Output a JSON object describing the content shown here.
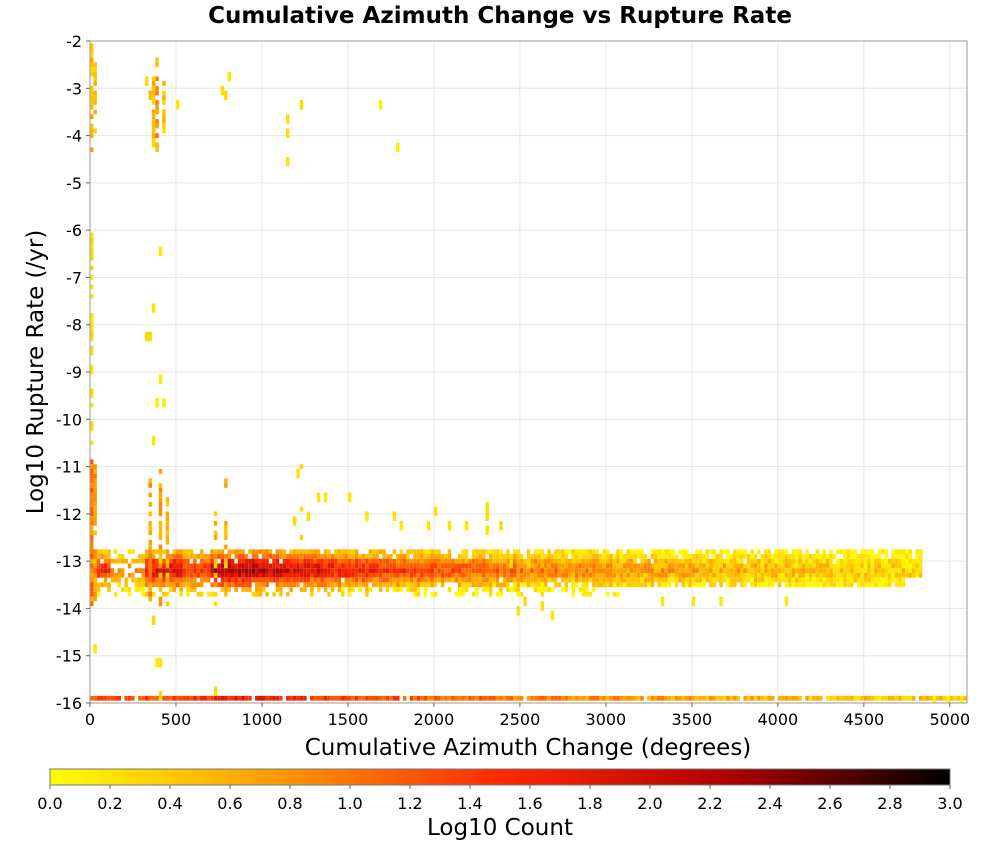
{
  "chart_data": {
    "type": "heatmap",
    "title": "Cumulative Azimuth Change vs Rupture Rate",
    "xlabel": "Cumulative Azimuth Change (degrees)",
    "ylabel": "Log10 Rupture Rate (/yr)",
    "xlim": [
      0,
      5100
    ],
    "ylim": [
      -16,
      -2
    ],
    "x_ticks": [
      0,
      500,
      1000,
      1500,
      2000,
      2500,
      3000,
      3500,
      4000,
      4500,
      5000
    ],
    "y_ticks": [
      -2,
      -3,
      -4,
      -5,
      -6,
      -7,
      -8,
      -9,
      -10,
      -11,
      -12,
      -13,
      -14,
      -15,
      -16
    ],
    "grid": true,
    "colorbar": {
      "label": "Log10 Count",
      "range": [
        0,
        3
      ],
      "ticks": [
        "0.0",
        "0.2",
        "0.4",
        "0.6",
        "0.8",
        "1.0",
        "1.2",
        "1.4",
        "1.6",
        "1.8",
        "2.0",
        "2.2",
        "2.4",
        "2.6",
        "2.8",
        "3.0"
      ],
      "colors": [
        "#ffff00",
        "#ff9a00",
        "#ff2a00",
        "#b00000",
        "#000000"
      ]
    },
    "cell_size": {
      "x": 20,
      "y": 0.1
    },
    "bands": [
      {
        "x_range": [
          0,
          4840
        ],
        "y": -12.8,
        "peak_x": 850,
        "peak": 0.75,
        "decay": 1500,
        "jitter": 0.2,
        "density": 0.75
      },
      {
        "x_range": [
          0,
          4840
        ],
        "y": -12.9,
        "peak_x": 850,
        "peak": 1.1,
        "decay": 1600,
        "jitter": 0.25,
        "density": 0.9
      },
      {
        "x_range": [
          0,
          4840
        ],
        "y": -13.0,
        "peak_x": 850,
        "peak": 1.7,
        "decay": 1800,
        "jitter": 0.3,
        "density": 0.97
      },
      {
        "x_range": [
          0,
          4840
        ],
        "y": -13.1,
        "peak_x": 850,
        "peak": 2.05,
        "decay": 2000,
        "jitter": 0.3,
        "density": 1
      },
      {
        "x_range": [
          0,
          4840
        ],
        "y": -13.2,
        "peak_x": 850,
        "peak": 2.3,
        "decay": 2100,
        "jitter": 0.3,
        "density": 1
      },
      {
        "x_range": [
          0,
          4840
        ],
        "y": -13.3,
        "peak_x": 850,
        "peak": 2.0,
        "decay": 2000,
        "jitter": 0.3,
        "density": 1
      },
      {
        "x_range": [
          0,
          4740
        ],
        "y": -13.4,
        "peak_x": 850,
        "peak": 1.5,
        "decay": 1800,
        "jitter": 0.3,
        "density": 0.95
      },
      {
        "x_range": [
          0,
          4740
        ],
        "y": -13.5,
        "peak_x": 850,
        "peak": 1.1,
        "decay": 1500,
        "jitter": 0.3,
        "density": 0.85
      },
      {
        "x_range": [
          0,
          3000
        ],
        "y": -13.6,
        "peak_x": 850,
        "peak": 0.6,
        "decay": 1200,
        "jitter": 0.25,
        "density": 0.55
      },
      {
        "x_range": [
          0,
          3100
        ],
        "y": -13.7,
        "peak_x": 850,
        "peak": 0.4,
        "decay": 1000,
        "jitter": 0.2,
        "density": 0.35
      },
      {
        "x_range": [
          0,
          5100
        ],
        "y": -15.9,
        "peak_x": 1000,
        "peak": 1.7,
        "decay": 2600,
        "jitter": 0.3,
        "density": 0.96
      }
    ],
    "columns": [
      {
        "x": 10,
        "y_from": -2.0,
        "y_to": -4.3,
        "value": 0.5,
        "density": 0.75
      },
      {
        "x": 10,
        "y_from": -6.0,
        "y_to": -10.8,
        "value": 0.25,
        "density": 0.55
      },
      {
        "x": 10,
        "y_from": -10.9,
        "y_to": -13.9,
        "value": 0.9,
        "density": 0.95
      },
      {
        "x": 30,
        "y_from": -2.5,
        "y_to": -4.2,
        "value": 0.45,
        "density": 0.5
      },
      {
        "x": 30,
        "y_from": -11.0,
        "y_to": -13.8,
        "value": 0.7,
        "density": 0.8
      },
      {
        "x": 350,
        "y_from": -11.3,
        "y_to": -13.9,
        "value": 0.8,
        "density": 0.7
      },
      {
        "x": 370,
        "y_from": -2.5,
        "y_to": -4.3,
        "value": 0.5,
        "density": 0.7
      },
      {
        "x": 390,
        "y_from": -2.4,
        "y_to": -4.2,
        "value": 0.75,
        "density": 0.7
      },
      {
        "x": 410,
        "y_from": -11.0,
        "y_to": -13.9,
        "value": 0.7,
        "density": 0.6
      },
      {
        "x": 430,
        "y_from": -2.8,
        "y_to": -4.0,
        "value": 0.45,
        "density": 0.6
      },
      {
        "x": 450,
        "y_from": -11.6,
        "y_to": -13.9,
        "value": 0.5,
        "density": 0.55
      },
      {
        "x": 730,
        "y_from": -11.9,
        "y_to": -13.9,
        "value": 0.45,
        "density": 0.55
      },
      {
        "x": 790,
        "y_from": -11.2,
        "y_to": -13.8,
        "value": 0.55,
        "density": 0.5
      },
      {
        "x": 1230,
        "y_from": -11.0,
        "y_to": -12.5,
        "value": 0.3,
        "density": 0.45
      },
      {
        "x": 2310,
        "y_from": -11.8,
        "y_to": -12.4,
        "value": 0.3,
        "density": 0.7
      }
    ],
    "points": [
      {
        "x": 330,
        "y": -2.8,
        "value": 0.3
      },
      {
        "x": 350,
        "y": -3.1,
        "value": 0.5
      },
      {
        "x": 510,
        "y": -3.3,
        "value": 0.2
      },
      {
        "x": 770,
        "y": -3.0,
        "value": 0.3
      },
      {
        "x": 790,
        "y": -3.1,
        "value": 0.3
      },
      {
        "x": 810,
        "y": -2.7,
        "value": 0.2
      },
      {
        "x": 1150,
        "y": -3.6,
        "value": 0.25
      },
      {
        "x": 1150,
        "y": -3.9,
        "value": 0.25
      },
      {
        "x": 1150,
        "y": -4.5,
        "value": 0.2
      },
      {
        "x": 1230,
        "y": -3.3,
        "value": 0.3
      },
      {
        "x": 1690,
        "y": -3.3,
        "value": 0.15
      },
      {
        "x": 1790,
        "y": -4.2,
        "value": 0.15
      },
      {
        "x": 370,
        "y": -4.1,
        "value": 0.3
      },
      {
        "x": 390,
        "y": -4.2,
        "value": 0.5
      },
      {
        "x": 410,
        "y": -6.4,
        "value": 0.2
      },
      {
        "x": 370,
        "y": -7.6,
        "value": 0.2
      },
      {
        "x": 330,
        "y": -8.2,
        "value": 0.3
      },
      {
        "x": 350,
        "y": -8.2,
        "value": 0.3
      },
      {
        "x": 410,
        "y": -9.1,
        "value": 0.15
      },
      {
        "x": 390,
        "y": -9.6,
        "value": 0.15
      },
      {
        "x": 430,
        "y": -9.6,
        "value": 0.15
      },
      {
        "x": 370,
        "y": -10.4,
        "value": 0.2
      },
      {
        "x": 30,
        "y": -14.8,
        "value": 0.2
      },
      {
        "x": 370,
        "y": -14.2,
        "value": 0.3
      },
      {
        "x": 390,
        "y": -15.1,
        "value": 0.2
      },
      {
        "x": 410,
        "y": -15.1,
        "value": 0.2
      },
      {
        "x": 410,
        "y": -15.8,
        "value": 0.3
      },
      {
        "x": 730,
        "y": -15.7,
        "value": 0.3
      },
      {
        "x": 1210,
        "y": -11.1,
        "value": 0.25
      },
      {
        "x": 1330,
        "y": -11.6,
        "value": 0.2
      },
      {
        "x": 1370,
        "y": -11.6,
        "value": 0.2
      },
      {
        "x": 1510,
        "y": -11.6,
        "value": 0.2
      },
      {
        "x": 1610,
        "y": -12.0,
        "value": 0.2
      },
      {
        "x": 1770,
        "y": -12.0,
        "value": 0.25
      },
      {
        "x": 1810,
        "y": -12.2,
        "value": 0.2
      },
      {
        "x": 2010,
        "y": -11.9,
        "value": 0.25
      },
      {
        "x": 1970,
        "y": -12.2,
        "value": 0.2
      },
      {
        "x": 2090,
        "y": -12.2,
        "value": 0.25
      },
      {
        "x": 1190,
        "y": -12.1,
        "value": 0.3
      },
      {
        "x": 1270,
        "y": -12.0,
        "value": 0.25
      },
      {
        "x": 2190,
        "y": -12.2,
        "value": 0.2
      },
      {
        "x": 2390,
        "y": -12.2,
        "value": 0.3
      },
      {
        "x": 2550,
        "y": -13.0,
        "value": 0.3
      },
      {
        "x": 2810,
        "y": -13.5,
        "value": 0.2
      },
      {
        "x": 2530,
        "y": -13.8,
        "value": 0.3
      },
      {
        "x": 2630,
        "y": -13.9,
        "value": 0.25
      },
      {
        "x": 2490,
        "y": -14.0,
        "value": 0.25
      },
      {
        "x": 2690,
        "y": -14.1,
        "value": 0.2
      },
      {
        "x": 3330,
        "y": -13.8,
        "value": 0.2
      },
      {
        "x": 3510,
        "y": -13.8,
        "value": 0.2
      },
      {
        "x": 3670,
        "y": -13.8,
        "value": 0.2
      },
      {
        "x": 4050,
        "y": -13.8,
        "value": 0.2
      },
      {
        "x": 4650,
        "y": -13.4,
        "value": 0.3
      },
      {
        "x": 4790,
        "y": -13.0,
        "value": 0.2
      },
      {
        "x": 4830,
        "y": -13.0,
        "value": 0.2
      },
      {
        "x": 4330,
        "y": -13.1,
        "value": 0.2
      },
      {
        "x": 4470,
        "y": -13.1,
        "value": 0.2
      },
      {
        "x": 4650,
        "y": -13.1,
        "value": 0.2
      },
      {
        "x": 2310,
        "y": -11.9,
        "value": 0.25
      },
      {
        "x": 2450,
        "y": -13.0,
        "value": 0.3
      },
      {
        "x": 4910,
        "y": -15.9,
        "value": 0.1
      },
      {
        "x": 4990,
        "y": -15.9,
        "value": 0.1
      },
      {
        "x": 5070,
        "y": -15.9,
        "value": 0.1
      }
    ]
  }
}
